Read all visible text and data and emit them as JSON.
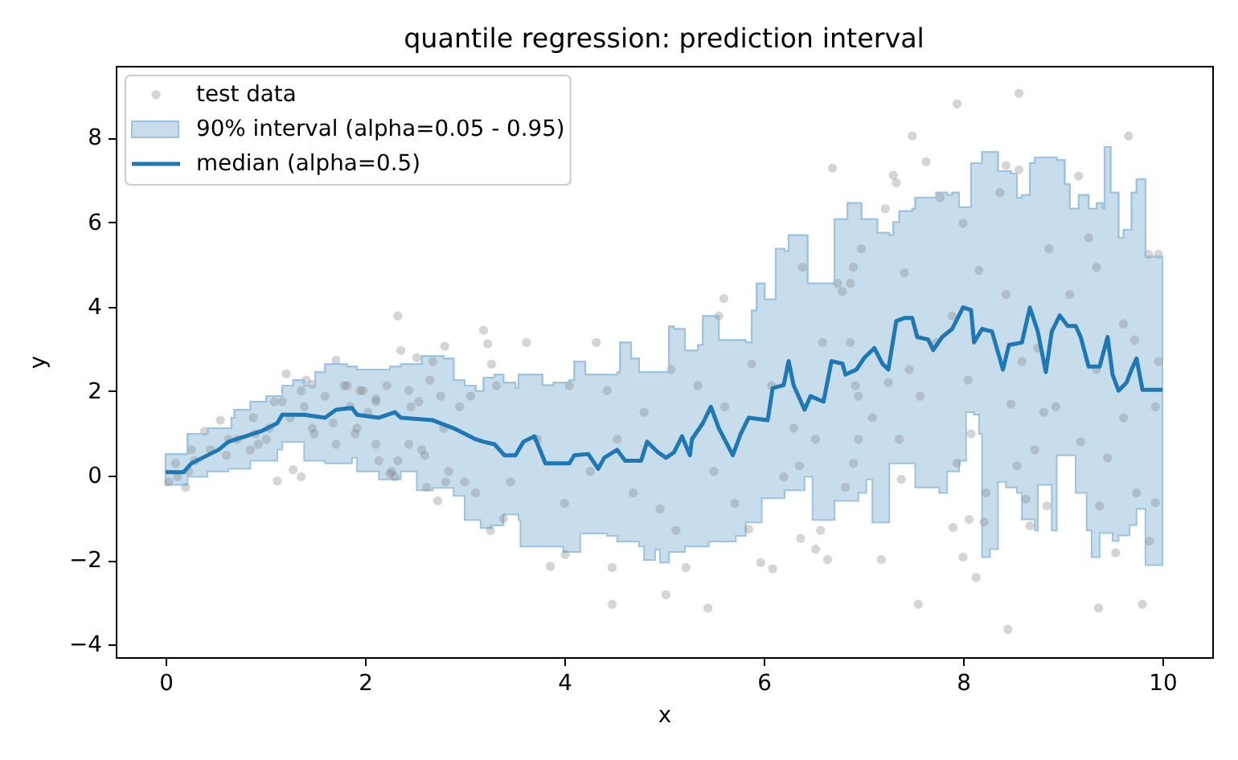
{
  "chart_data": {
    "type": "line",
    "title": "quantile regression: prediction interval",
    "xlabel": "x",
    "ylabel": "y",
    "xlim": [
      -0.5,
      10.5
    ],
    "ylim": [
      -4.3,
      9.7
    ],
    "xticks": [
      0,
      2,
      4,
      6,
      8,
      10
    ],
    "yticks": [
      {
        "value": -4,
        "label": "−4"
      },
      {
        "value": -2,
        "label": "−2"
      },
      0,
      2,
      4,
      6,
      8
    ],
    "grid": false,
    "legend": "top left",
    "series": [
      {
        "name": "test data",
        "type": "scatter",
        "marker": "circle",
        "color": "#808080",
        "x": [
          2.33,
          3.19,
          3.23,
          2.8,
          2.36,
          2.52,
          2.68,
          1.71,
          1.21,
          1.47,
          0.55,
          0.39,
          1.12,
          1.28,
          1.36,
          0.2,
          0.03,
          0.1,
          0.26,
          0.63,
          0.9,
          0.85,
          1.01,
          1.17,
          1.39,
          1.6,
          1.82,
          1.98,
          2.14,
          2.25,
          2.3,
          2.11,
          1.92,
          1.71,
          1.49,
          2.57,
          2.62,
          2.73,
          2.84,
          3.0,
          3.11,
          3.26,
          3.39,
          2.95,
          3.06,
          3.32,
          3.27,
          2.03,
          2.46,
          2.79,
          1.36,
          1.79,
          1.95,
          2.11,
          2.22,
          2.44,
          2.54,
          2.65,
          2.44,
          2.6,
          2.27,
          2.33,
          2.11,
          1.9,
          1.68,
          1.47,
          1.25,
          1.04,
          0.93,
          0.72,
          0.61,
          0.45,
          0.29,
          0.12,
          0.23,
          0.88,
          1.09,
          1.41,
          1.85,
          2.76,
          2.81,
          6.69,
          5.6,
          3.62,
          4.32,
          4.05,
          6.08,
          4.48,
          5.02,
          5.44,
          4.48,
          5.22,
          3.86,
          4.01,
          5.85,
          5.97,
          6.09,
          6.37,
          6.57,
          6.52,
          6.64,
          6.39,
          6.9,
          6.74,
          6.79,
          6.59,
          6.87,
          5.55,
          5.34,
          5.07,
          4.8,
          4.53,
          4.26,
          4.0,
          3.73,
          3.46,
          4.69,
          4.96,
          5.12,
          5.5,
          5.71,
          6.2,
          6.36,
          6.52,
          6.3,
          6.95,
          6.95,
          5.61,
          4.43,
          5.88,
          8.56,
          7.94,
          7.49,
          9.66,
          7.63,
          7.3,
          7.33,
          8.43,
          9.16,
          8.56,
          9.96,
          9.86,
          7.22,
          7.77,
          8.37,
          8.86,
          9.26,
          6.98,
          8.0,
          7.41,
          8.16,
          9.34,
          6.87,
          7.89,
          8.43,
          9.07,
          9.61,
          7.73,
          8.75,
          9.72,
          7.46,
          8.05,
          8.59,
          9.34,
          9.96,
          6.92,
          7.25,
          7.57,
          8.48,
          8.93,
          9.93,
          7.09,
          7.36,
          8.08,
          8.81,
          9.18,
          9.61,
          6.9,
          7.38,
          7.94,
          8.54,
          8.72,
          9.45,
          9.74,
          9.93,
          6.82,
          8.23,
          8.63,
          9.37,
          7.18,
          7.9,
          8.06,
          8.0,
          8.21,
          8.67,
          8.84,
          8.13,
          7.55,
          8.45,
          9.36,
          9.8,
          9.53,
          9.87
        ],
        "values": [
          3.78,
          3.44,
          3.12,
          3.06,
          2.96,
          2.79,
          2.7,
          2.73,
          2.41,
          2.16,
          1.31,
          1.05,
          -0.13,
          0.14,
          -0.03,
          -0.28,
          -0.15,
          0.29,
          0.61,
          0.86,
          0.99,
          0.61,
          0.86,
          1.75,
          1.63,
          1.88,
          2.13,
          2.01,
          0.35,
          0.04,
          -0.03,
          1.82,
          1.12,
          0.74,
          0.99,
          0.61,
          -0.28,
          -0.6,
          0.1,
          -0.15,
          -0.41,
          -1.3,
          -1.02,
          1.63,
          1.88,
          2.13,
          2.64,
          1.5,
          1.63,
          1.12,
          2.01,
          2.13,
          2.01,
          1.75,
          2.13,
          2.01,
          1.75,
          2.26,
          0.74,
          0.48,
          0.1,
          0.35,
          0.74,
          0.99,
          1.25,
          1.12,
          1.37,
          1.12,
          0.74,
          0.86,
          0.48,
          0.61,
          0.35,
          -0.03,
          0.1,
          1.37,
          1.75,
          2.26,
          1.63,
          1.88,
          -0.15,
          7.28,
          4.19,
          3.15,
          3.15,
          2.13,
          2.13,
          -2.18,
          -2.82,
          -3.14,
          -3.05,
          -2.18,
          -2.15,
          -1.87,
          -1.27,
          -2.06,
          -2.21,
          -1.49,
          -1.3,
          -1.74,
          -1.99,
          4.93,
          4.93,
          4.55,
          4.36,
          3.15,
          3.15,
          3.78,
          2.13,
          2.51,
          1.5,
          0.86,
          0.1,
          -0.66,
          0.86,
          -0.15,
          -0.41,
          -0.79,
          -1.3,
          0.1,
          -0.66,
          -0.03,
          0.23,
          0.86,
          1.12,
          0.86,
          1.88,
          1.63,
          2.01,
          2.64,
          9.05,
          8.8,
          8.04,
          8.04,
          7.43,
          7.11,
          6.93,
          7.34,
          7.09,
          7.24,
          5.24,
          5.24,
          6.32,
          6.58,
          6.7,
          5.37,
          5.63,
          5.37,
          5.97,
          4.8,
          4.86,
          4.93,
          4.55,
          3.78,
          4.29,
          4.29,
          3.59,
          3.15,
          3.02,
          3.21,
          2.51,
          2.26,
          2.7,
          2.51,
          2.7,
          2.13,
          2.2,
          1.88,
          1.69,
          1.63,
          1.63,
          1.37,
          0.86,
          0.99,
          1.5,
          0.8,
          1.37,
          0.29,
          -0.09,
          0.29,
          0.23,
          0.61,
          0.42,
          -0.41,
          -0.64,
          -0.28,
          -0.41,
          -0.56,
          -0.72,
          -1.99,
          -1.23,
          -1.04,
          -1.93,
          -1.1,
          -1.19,
          -0.72,
          -2.41,
          -3.05,
          -3.64,
          -3.14,
          -3.05,
          -1.83,
          -1.55
        ]
      },
      {
        "name": "90% interval (alpha=0.05 - 0.95)",
        "color": "#9dc3de",
        "x": [
          0.0,
          0.22,
          0.22,
          0.42,
          0.42,
          0.63,
          0.63,
          0.66,
          0.66,
          0.69,
          0.69,
          0.85,
          0.85,
          1.01,
          1.01,
          1.12,
          1.12,
          1.17,
          1.17,
          1.28,
          1.28,
          1.39,
          1.39,
          1.5,
          1.5,
          1.6,
          1.6,
          1.82,
          1.82,
          1.87,
          1.87,
          1.92,
          1.92,
          2.14,
          2.14,
          2.25,
          2.25,
          2.36,
          2.36,
          2.52,
          2.52,
          2.57,
          2.57,
          2.68,
          2.68,
          2.79,
          2.79,
          2.89,
          2.89,
          3.0,
          3.0,
          3.11,
          3.11,
          3.16,
          3.16,
          3.19,
          3.19,
          3.27,
          3.27,
          3.3,
          3.3,
          3.39,
          3.39,
          3.51,
          3.51,
          3.54,
          3.54,
          3.56,
          3.56,
          3.78,
          3.78,
          3.89,
          3.89,
          3.99,
          3.99,
          4.05,
          4.05,
          4.1,
          4.1,
          4.16,
          4.16,
          4.21,
          4.21,
          4.43,
          4.43,
          4.53,
          4.53,
          4.56,
          4.56,
          4.67,
          4.67,
          4.75,
          4.75,
          4.8,
          4.8,
          4.91,
          4.91,
          4.96,
          4.96,
          5.05,
          5.05,
          5.1,
          5.1,
          5.21,
          5.21,
          5.34,
          5.34,
          5.39,
          5.39,
          5.45,
          5.45,
          5.55,
          5.55,
          5.72,
          5.72,
          5.82,
          5.82,
          5.88,
          5.88,
          5.93,
          5.93,
          5.98,
          5.98,
          6.01,
          6.01,
          6.12,
          6.12,
          6.21,
          6.21,
          6.25,
          6.25,
          6.41,
          6.41,
          6.44,
          6.44,
          6.49,
          6.49,
          6.71,
          6.71,
          6.84,
          6.84,
          6.95,
          6.95,
          6.98,
          6.98,
          7.03,
          7.03,
          7.09,
          7.09,
          7.14,
          7.14,
          7.26,
          7.26,
          7.3,
          7.3,
          7.36,
          7.36,
          7.49,
          7.49,
          7.52,
          7.52,
          7.73,
          7.73,
          7.76,
          7.76,
          7.84,
          7.84,
          7.89,
          7.89,
          7.96,
          7.96,
          8.03,
          8.03,
          8.08,
          8.08,
          8.11,
          8.11,
          8.16,
          8.16,
          8.19,
          8.19,
          8.27,
          8.27,
          8.35,
          8.35,
          8.43,
          8.43,
          8.48,
          8.48,
          8.54,
          8.54,
          8.59,
          8.59,
          8.67,
          8.67,
          8.72,
          8.72,
          8.75,
          8.75,
          8.89,
          8.89,
          8.94,
          8.94,
          9.02,
          9.02,
          9.07,
          9.07,
          9.13,
          9.13,
          9.16,
          9.16,
          9.24,
          9.24,
          9.26,
          9.26,
          9.29,
          9.29,
          9.34,
          9.34,
          9.37,
          9.37,
          9.4,
          9.4,
          9.42,
          9.42,
          9.48,
          9.48,
          9.5,
          9.5,
          9.56,
          9.56,
          9.61,
          9.61,
          9.67,
          9.67,
          9.69,
          9.69,
          9.74,
          9.74,
          9.83,
          9.83,
          10.0
        ],
        "values": [
          0.51,
          0.51,
          0.99,
          0.99,
          1.12,
          1.12,
          1.12,
          1.12,
          1.37,
          1.37,
          1.56,
          1.56,
          1.75,
          1.75,
          1.88,
          1.88,
          1.88,
          1.88,
          2.13,
          2.13,
          2.26,
          2.26,
          2.13,
          2.13,
          2.45,
          2.45,
          2.64,
          2.64,
          2.58,
          2.58,
          2.58,
          2.58,
          2.51,
          2.51,
          2.51,
          2.51,
          2.58,
          2.58,
          2.64,
          2.64,
          2.64,
          2.64,
          2.83,
          2.83,
          2.83,
          2.83,
          2.77,
          2.77,
          2.26,
          2.26,
          2.13,
          2.13,
          2.0,
          2.0,
          2.0,
          2.0,
          2.32,
          2.32,
          2.32,
          2.32,
          2.39,
          2.39,
          2.2,
          2.2,
          2.07,
          2.07,
          2.39,
          2.39,
          2.39,
          2.39,
          2.14,
          2.14,
          2.2,
          2.2,
          2.2,
          2.2,
          2.26,
          2.26,
          2.7,
          2.7,
          2.7,
          2.7,
          2.39,
          2.39,
          2.39,
          2.39,
          2.45,
          2.45,
          3.15,
          3.15,
          2.77,
          2.77,
          2.45,
          2.45,
          2.45,
          2.45,
          2.45,
          2.45,
          2.45,
          2.45,
          3.53,
          3.53,
          3.47,
          3.47,
          2.96,
          2.96,
          3.09,
          3.09,
          3.78,
          3.78,
          3.78,
          3.78,
          3.21,
          3.21,
          3.21,
          3.21,
          3.15,
          3.15,
          3.91,
          3.91,
          4.55,
          4.55,
          4.55,
          4.55,
          4.17,
          4.17,
          5.37,
          5.37,
          5.31,
          5.31,
          5.69,
          5.69,
          5.69,
          5.69,
          4.55,
          4.55,
          4.55,
          4.55,
          6.07,
          6.07,
          6.45,
          6.45,
          6.45,
          6.45,
          6.07,
          6.07,
          6.07,
          6.07,
          6.07,
          6.07,
          5.75,
          5.75,
          5.69,
          5.69,
          6.0,
          6.0,
          6.26,
          6.26,
          6.32,
          6.32,
          6.58,
          6.58,
          6.7,
          6.7,
          6.7,
          6.7,
          6.64,
          6.64,
          6.7,
          6.7,
          6.35,
          6.35,
          6.35,
          6.35,
          7.4,
          7.4,
          7.4,
          7.4,
          7.4,
          7.4,
          7.66,
          7.66,
          7.66,
          7.66,
          7.21,
          7.21,
          7.21,
          7.21,
          7.15,
          7.15,
          6.58,
          6.58,
          6.64,
          6.64,
          7.4,
          7.4,
          7.53,
          7.53,
          7.53,
          7.53,
          7.53,
          7.53,
          7.47,
          7.47,
          6.9,
          6.9,
          6.32,
          6.32,
          6.32,
          6.32,
          6.64,
          6.64,
          6.64,
          6.64,
          6.32,
          6.32,
          6.32,
          6.32,
          6.45,
          6.45,
          6.45,
          6.45,
          6.32,
          6.32,
          7.78,
          7.78,
          6.7,
          6.7,
          6.7,
          6.7,
          5.63,
          5.63,
          5.82,
          5.82,
          5.82,
          5.82,
          6.7,
          6.7,
          7.02,
          7.02,
          5.18,
          5.18
        ],
        "upper": [
          0.51,
          0.51,
          0.99,
          0.99,
          1.12,
          1.12,
          1.12,
          1.12,
          1.37,
          1.37,
          1.56,
          1.56,
          1.75,
          1.75,
          1.88,
          1.88,
          1.88,
          1.88,
          2.13,
          2.13,
          2.26,
          2.26,
          2.13,
          2.13,
          2.45,
          2.45,
          2.64,
          2.64,
          2.58,
          2.58,
          2.58,
          2.58,
          2.51,
          2.51,
          2.51,
          2.51,
          2.58,
          2.58,
          2.64,
          2.64,
          2.64,
          2.64,
          2.83,
          2.83,
          2.83,
          2.83,
          2.77,
          2.77,
          2.26,
          2.26,
          2.13,
          2.13,
          2.0,
          2.0,
          2.0,
          2.0,
          2.32,
          2.32,
          2.32,
          2.32,
          2.39,
          2.39,
          2.2,
          2.2,
          2.07,
          2.07,
          2.39,
          2.39,
          2.39,
          2.39,
          2.14,
          2.14,
          2.2,
          2.2,
          2.2,
          2.2,
          2.26,
          2.26,
          2.7,
          2.7,
          2.7,
          2.7,
          2.39,
          2.39,
          2.39,
          2.39,
          2.45,
          2.45,
          3.15,
          3.15,
          2.77,
          2.77,
          2.45,
          2.45,
          2.45,
          2.45,
          2.45,
          2.45,
          2.45,
          2.45,
          3.53,
          3.53,
          3.47,
          3.47,
          2.96,
          2.96,
          3.09,
          3.09,
          3.78,
          3.78,
          3.78,
          3.78,
          3.21,
          3.21,
          3.21,
          3.21,
          3.15,
          3.15,
          3.91,
          3.91,
          4.55,
          4.55,
          4.55,
          4.55,
          4.17,
          4.17,
          5.37,
          5.37,
          5.31,
          5.31,
          5.69,
          5.69,
          5.69,
          5.69,
          4.55,
          4.55,
          4.55,
          4.55,
          6.07,
          6.07,
          6.45,
          6.45,
          6.45,
          6.45,
          6.07,
          6.07,
          6.07,
          6.07,
          6.07,
          6.07,
          5.75,
          5.75,
          5.69,
          5.69,
          6.0,
          6.0,
          6.26,
          6.26,
          6.32,
          6.32,
          6.58,
          6.58,
          6.7,
          6.7,
          6.7,
          6.7,
          6.64,
          6.64,
          6.7,
          6.7,
          6.35,
          6.35,
          6.35,
          6.35,
          7.4,
          7.4,
          7.4,
          7.4,
          7.4,
          7.4,
          7.66,
          7.66,
          7.66,
          7.66,
          7.21,
          7.21,
          7.21,
          7.21,
          7.15,
          7.15,
          6.58,
          6.58,
          6.64,
          6.64,
          7.4,
          7.4,
          7.53,
          7.53,
          7.53,
          7.53,
          7.53,
          7.53,
          7.47,
          7.47,
          6.9,
          6.9,
          6.32,
          6.32,
          6.32,
          6.32,
          6.64,
          6.64,
          6.64,
          6.64,
          6.32,
          6.32,
          6.32,
          6.32,
          6.45,
          6.45,
          6.45,
          6.45,
          6.32,
          6.32,
          7.78,
          7.78,
          6.7,
          6.7,
          6.7,
          6.7,
          5.63,
          5.63,
          5.82,
          5.82,
          5.82,
          5.82,
          6.7,
          6.7,
          7.02,
          7.02,
          5.18,
          5.18
        ],
        "lower": [
          -0.22,
          -0.22,
          -0.03,
          -0.03,
          0.1,
          0.1,
          0.16,
          0.16,
          0.16,
          0.16,
          0.16,
          0.16,
          0.35,
          0.35,
          0.35,
          0.35,
          0.61,
          0.61,
          0.8,
          0.8,
          0.8,
          0.8,
          0.35,
          0.35,
          0.35,
          0.35,
          0.29,
          0.29,
          0.29,
          0.29,
          0.42,
          0.42,
          0.1,
          0.1,
          -0.09,
          -0.09,
          -0.09,
          -0.09,
          0.1,
          0.1,
          -0.35,
          -0.35,
          -0.35,
          -0.35,
          -0.29,
          -0.29,
          -0.29,
          -0.29,
          -0.48,
          -0.48,
          -1.05,
          -1.05,
          -1.05,
          -1.05,
          -1.24,
          -1.24,
          -1.24,
          -1.24,
          -1.18,
          -1.18,
          -1.18,
          -1.18,
          -0.92,
          -0.92,
          -0.92,
          -0.92,
          -1.05,
          -1.05,
          -1.68,
          -1.68,
          -1.68,
          -1.68,
          -1.68,
          -1.68,
          -1.81,
          -1.81,
          -1.81,
          -1.81,
          -1.81,
          -1.81,
          -1.37,
          -1.37,
          -1.37,
          -1.37,
          -1.43,
          -1.43,
          -1.56,
          -1.56,
          -1.56,
          -1.56,
          -1.56,
          -1.56,
          -1.68,
          -1.68,
          -2.0,
          -2.0,
          -1.75,
          -1.75,
          -2.06,
          -2.06,
          -1.81,
          -1.81,
          -1.81,
          -1.81,
          -1.68,
          -1.68,
          -1.68,
          -1.68,
          -1.68,
          -1.68,
          -1.56,
          -1.56,
          -1.56,
          -1.56,
          -1.43,
          -1.43,
          -1.11,
          -1.11,
          -1.11,
          -1.11,
          -1.11,
          -1.11,
          -0.54,
          -0.54,
          -0.54,
          -0.54,
          -0.54,
          -0.54,
          -0.35,
          -0.35,
          -0.35,
          -0.35,
          -0.03,
          -0.03,
          -0.03,
          -0.03,
          -1.05,
          -1.05,
          -0.6,
          -0.6,
          -0.6,
          -0.6,
          -0.41,
          -0.41,
          -0.41,
          -0.41,
          -0.09,
          -0.09,
          -1.11,
          -1.11,
          -1.11,
          -1.11,
          0.29,
          0.29,
          0.29,
          0.29,
          0.29,
          0.29,
          0.29,
          0.29,
          -0.28,
          -0.28,
          -0.28,
          -0.28,
          -0.41,
          -0.41,
          0.1,
          0.1,
          0.1,
          0.1,
          0.35,
          0.35,
          1.5,
          1.5,
          1.5,
          1.5,
          1.44,
          1.44,
          0.99,
          0.99,
          -1.93,
          -1.93,
          -1.74,
          -1.74,
          -0.15,
          -0.15,
          -0.28,
          -0.28,
          -0.28,
          -0.28,
          -0.41,
          -0.41,
          -1.04,
          -1.04,
          -1.04,
          -1.04,
          -1.3,
          -1.3,
          -0.22,
          -0.22,
          -1.3,
          -1.3,
          0.48,
          0.48,
          0.48,
          0.48,
          0.48,
          0.48,
          -0.41,
          -0.41,
          -0.41,
          -0.41,
          -1.3,
          -1.3,
          -1.3,
          -1.3,
          -1.93,
          -1.93,
          -1.93,
          -1.93,
          -1.36,
          -1.36,
          -1.36,
          -1.36,
          -1.36,
          -1.36,
          -1.36,
          -1.36,
          -1.55,
          -1.55,
          -1.42,
          -1.42,
          -1.42,
          -1.42,
          -1.17,
          -1.17,
          -1.17,
          -1.17,
          -0.79,
          -0.79,
          -2.12,
          -2.12
        ]
      },
      {
        "name": "median (alpha=0.5)",
        "color": "#1f77b4",
        "x": [
          0.0,
          0.18,
          0.26,
          0.37,
          0.53,
          0.63,
          0.8,
          0.96,
          1.12,
          1.17,
          1.39,
          1.6,
          1.71,
          1.87,
          1.92,
          2.14,
          2.3,
          2.36,
          2.68,
          2.89,
          3.11,
          3.19,
          3.3,
          3.4,
          3.51,
          3.59,
          3.7,
          3.81,
          4.05,
          4.1,
          4.24,
          4.34,
          4.4,
          4.53,
          4.61,
          4.77,
          4.83,
          4.94,
          5.02,
          5.1,
          5.18,
          5.26,
          5.28,
          5.39,
          5.47,
          5.55,
          5.69,
          5.77,
          5.85,
          6.04,
          6.09,
          6.2,
          6.25,
          6.3,
          6.41,
          6.47,
          6.6,
          6.68,
          6.79,
          6.82,
          6.93,
          7.01,
          7.11,
          7.19,
          7.25,
          7.33,
          7.41,
          7.49,
          7.54,
          7.65,
          7.7,
          7.79,
          7.89,
          8.0,
          8.08,
          8.11,
          8.19,
          8.29,
          8.4,
          8.46,
          8.59,
          8.67,
          8.75,
          8.83,
          8.89,
          8.97,
          9.05,
          9.13,
          9.18,
          9.26,
          9.37,
          9.45,
          9.5,
          9.56,
          9.64,
          9.69,
          9.74,
          9.8,
          10.0
        ],
        "values": [
          0.08,
          0.08,
          0.29,
          0.42,
          0.61,
          0.8,
          0.93,
          1.05,
          1.24,
          1.44,
          1.44,
          1.37,
          1.56,
          1.6,
          1.44,
          1.37,
          1.5,
          1.37,
          1.31,
          1.12,
          0.86,
          0.8,
          0.74,
          0.48,
          0.48,
          0.8,
          0.93,
          0.29,
          0.29,
          0.48,
          0.51,
          0.16,
          0.42,
          0.61,
          0.35,
          0.35,
          0.8,
          0.55,
          0.42,
          0.55,
          0.93,
          0.48,
          0.86,
          1.24,
          1.63,
          1.12,
          0.48,
          0.99,
          1.37,
          1.31,
          2.07,
          2.14,
          2.71,
          2.14,
          1.56,
          1.88,
          1.75,
          2.71,
          2.65,
          2.39,
          2.51,
          2.79,
          3.02,
          2.65,
          2.51,
          3.66,
          3.73,
          3.73,
          3.28,
          3.22,
          2.97,
          3.28,
          3.47,
          3.98,
          3.92,
          3.15,
          3.47,
          3.41,
          2.51,
          3.09,
          3.15,
          3.98,
          3.41,
          2.45,
          3.41,
          3.79,
          3.54,
          3.54,
          3.28,
          2.58,
          2.58,
          3.28,
          2.39,
          2.01,
          2.2,
          2.51,
          2.77,
          2.03,
          2.03
        ]
      }
    ]
  }
}
